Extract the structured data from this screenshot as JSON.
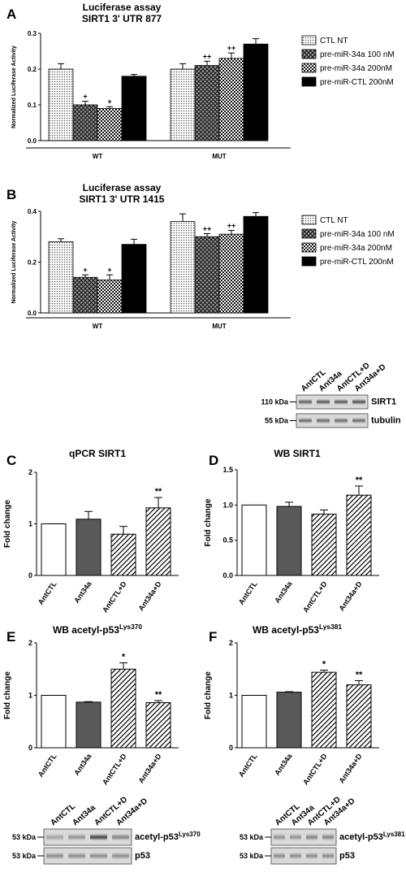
{
  "chart_data": [
    {
      "panel": "A",
      "type": "bar",
      "title": "Luciferase assay",
      "subtitle": "SIRT1 3' UTR 877",
      "ylabel": "Normalized Luciferase Activity",
      "ylim": [
        0,
        0.3
      ],
      "yticks": [
        "0.0",
        "0.1",
        "0.2",
        "0.3"
      ],
      "groups": [
        "WT",
        "MUT"
      ],
      "legend": [
        "CTL NT",
        "pre-miR-34a 100 nM",
        "pre-miR-34a 200nM",
        "pre-miR-CTL 200nM"
      ],
      "series": [
        {
          "name": "CTL NT",
          "values": [
            0.2,
            0.2
          ],
          "errors": [
            0.015,
            0.015
          ],
          "marks": [
            "",
            ""
          ]
        },
        {
          "name": "pre-miR-34a 100 nM",
          "values": [
            0.1,
            0.21
          ],
          "errors": [
            0.01,
            0.012
          ],
          "marks": [
            "+",
            "++"
          ]
        },
        {
          "name": "pre-miR-34a 200nM",
          "values": [
            0.09,
            0.23
          ],
          "errors": [
            0.005,
            0.015
          ],
          "marks": [
            "+",
            "++"
          ]
        },
        {
          "name": "pre-miR-CTL 200nM",
          "values": [
            0.18,
            0.27
          ],
          "errors": [
            0.005,
            0.015
          ],
          "marks": [
            "",
            ""
          ]
        }
      ]
    },
    {
      "panel": "B",
      "type": "bar",
      "title": "Luciferase assay",
      "subtitle": "SIRT1 3' UTR 1415",
      "ylabel": "Normalized Luciferase Activity",
      "ylim": [
        0,
        0.4
      ],
      "yticks": [
        "0.0",
        "0.2",
        "0.4"
      ],
      "groups": [
        "WT",
        "MUT"
      ],
      "legend": [
        "CTL NT",
        "pre-miR-34a 100 nM",
        "pre-miR-34a 200nM",
        "pre-miR-CTL 200nM"
      ],
      "series": [
        {
          "name": "CTL NT",
          "values": [
            0.28,
            0.36
          ],
          "errors": [
            0.012,
            0.03
          ],
          "marks": [
            "",
            ""
          ]
        },
        {
          "name": "pre-miR-34a 100 nM",
          "values": [
            0.14,
            0.3
          ],
          "errors": [
            0.01,
            0.012
          ],
          "marks": [
            "+",
            "++"
          ]
        },
        {
          "name": "pre-miR-34a 200nM",
          "values": [
            0.13,
            0.31
          ],
          "errors": [
            0.02,
            0.015
          ],
          "marks": [
            "+",
            "++"
          ]
        },
        {
          "name": "pre-miR-CTL 200nM",
          "values": [
            0.27,
            0.38
          ],
          "errors": [
            0.02,
            0.015
          ],
          "marks": [
            "",
            ""
          ]
        }
      ]
    },
    {
      "panel": "C",
      "type": "bar",
      "title": "qPCR SIRT1",
      "ylabel": "Fold change",
      "ylim": [
        0,
        2
      ],
      "yticks": [
        "0",
        "1",
        "2"
      ],
      "categories": [
        "AntCTL",
        "Ant34a",
        "AntCTL+D",
        "Ant34a+D"
      ],
      "values": [
        1.0,
        1.09,
        0.8,
        1.31
      ],
      "errors": [
        0,
        0.15,
        0.15,
        0.2
      ],
      "marks": [
        "",
        "",
        "",
        "**"
      ]
    },
    {
      "panel": "D",
      "type": "bar",
      "title": "WB SIRT1",
      "ylabel": "Fold change",
      "ylim": [
        0,
        1.5
      ],
      "yticks": [
        "0.0",
        "0.5",
        "1.0",
        "1.5"
      ],
      "categories": [
        "AntCTL",
        "Ant34a",
        "AntCTL+D",
        "Ant34a+D"
      ],
      "values": [
        1.0,
        0.98,
        0.87,
        1.14
      ],
      "errors": [
        0,
        0.06,
        0.06,
        0.13
      ],
      "marks": [
        "",
        "",
        "",
        "**"
      ]
    },
    {
      "panel": "E",
      "type": "bar",
      "title_main": "WB acetyl-p53",
      "title_sup": "Lys370",
      "ylabel": "Fold change",
      "ylim": [
        0,
        2
      ],
      "yticks": [
        "0",
        "1",
        "2"
      ],
      "categories": [
        "AntCTL",
        "Ant34a",
        "AntCTL+D",
        "Ant34a+D"
      ],
      "values": [
        1.0,
        0.87,
        1.5,
        0.86
      ],
      "errors": [
        0,
        0.01,
        0.12,
        0.04
      ],
      "marks": [
        "",
        "",
        "*",
        "**"
      ]
    },
    {
      "panel": "F",
      "type": "bar",
      "title_main": "WB acetyl-p53",
      "title_sup": "Lys381",
      "ylabel": "Fold change",
      "ylim": [
        0,
        2
      ],
      "yticks": [
        "0",
        "1",
        "2"
      ],
      "categories": [
        "AntCTL",
        "Ant34a",
        "AntCTL+D",
        "Ant34a+D"
      ],
      "values": [
        1.0,
        1.06,
        1.44,
        1.2
      ],
      "errors": [
        0,
        0.01,
        0.04,
        0.08
      ],
      "marks": [
        "",
        "",
        "*",
        "**"
      ]
    }
  ],
  "blots": {
    "sirt1": {
      "lanes": [
        "AntCTL",
        "Ant34a",
        "AntCTL+D",
        "Ant34a+D"
      ],
      "rows": [
        {
          "kda": "110 kDa",
          "label": "SIRT1"
        },
        {
          "kda": "55 kDa",
          "label": "tubulin"
        }
      ]
    },
    "p53_370": {
      "lanes": [
        "AntCTL",
        "Ant34a",
        "AntCTL+D",
        "Ant34a+D"
      ],
      "rows": [
        {
          "kda": "53 kDa",
          "label_main": "acetyl-p53",
          "label_sup": "Lys370"
        },
        {
          "kda": "53 kDa",
          "label_main": "p53",
          "label_sup": ""
        }
      ]
    },
    "p53_381": {
      "lanes": [
        "AntCTL",
        "Ant34a",
        "AntCTL+D",
        "Ant34a+D"
      ],
      "rows": [
        {
          "kda": "53 kDa",
          "label_main": "acetyl-p53",
          "label_sup": "Lys381"
        },
        {
          "kda": "53 kDa",
          "label_main": "p53",
          "label_sup": ""
        }
      ]
    }
  }
}
